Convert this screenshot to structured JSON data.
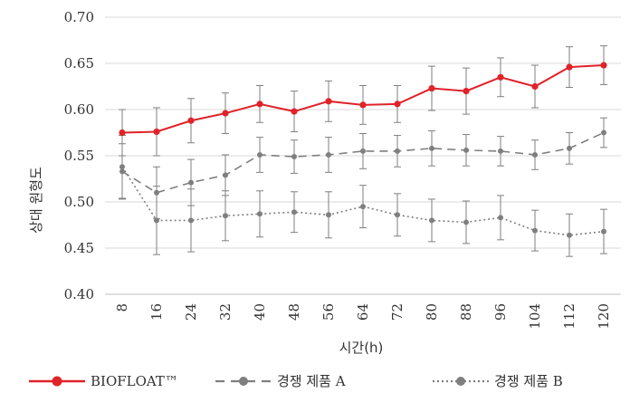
{
  "chart_data": {
    "type": "line",
    "xlabel": "시간(h)",
    "ylabel": "상대 원형도",
    "ylim": [
      0.4,
      0.7
    ],
    "yticks": [
      "0.40",
      "0.45",
      "0.50",
      "0.55",
      "0.60",
      "0.65",
      "0.70"
    ],
    "categories": [
      "8",
      "16",
      "24",
      "32",
      "40",
      "48",
      "56",
      "64",
      "72",
      "80",
      "88",
      "96",
      "104",
      "112",
      "120"
    ],
    "grid": true,
    "legend_position": "bottom",
    "series": [
      {
        "name": "BIOFLOAT™",
        "color": "#e02229",
        "line_style": "solid",
        "values": [
          0.575,
          0.576,
          0.588,
          0.596,
          0.606,
          0.598,
          0.609,
          0.605,
          0.606,
          0.623,
          0.62,
          0.635,
          0.625,
          0.646,
          0.648
        ],
        "errors": [
          0.025,
          0.026,
          0.024,
          0.022,
          0.02,
          0.022,
          0.022,
          0.021,
          0.02,
          0.024,
          0.025,
          0.021,
          0.023,
          0.022,
          0.021
        ]
      },
      {
        "name": "경쟁 제품 A",
        "color": "#7f7f7f",
        "line_style": "dashed",
        "values": [
          0.533,
          0.51,
          0.521,
          0.529,
          0.551,
          0.549,
          0.551,
          0.555,
          0.555,
          0.558,
          0.556,
          0.555,
          0.551,
          0.558,
          0.575
        ],
        "errors": [
          0.03,
          0.028,
          0.025,
          0.022,
          0.019,
          0.018,
          0.019,
          0.019,
          0.017,
          0.019,
          0.017,
          0.016,
          0.016,
          0.017,
          0.016
        ]
      },
      {
        "name": "경쟁 제품 B",
        "color": "#7f7f7f",
        "line_style": "dotted",
        "values": [
          0.538,
          0.48,
          0.48,
          0.485,
          0.487,
          0.489,
          0.486,
          0.495,
          0.486,
          0.48,
          0.478,
          0.483,
          0.469,
          0.464,
          0.468
        ],
        "errors": [
          0.034,
          0.037,
          0.034,
          0.027,
          0.025,
          0.022,
          0.025,
          0.023,
          0.023,
          0.023,
          0.023,
          0.024,
          0.022,
          0.023,
          0.024
        ]
      }
    ]
  }
}
